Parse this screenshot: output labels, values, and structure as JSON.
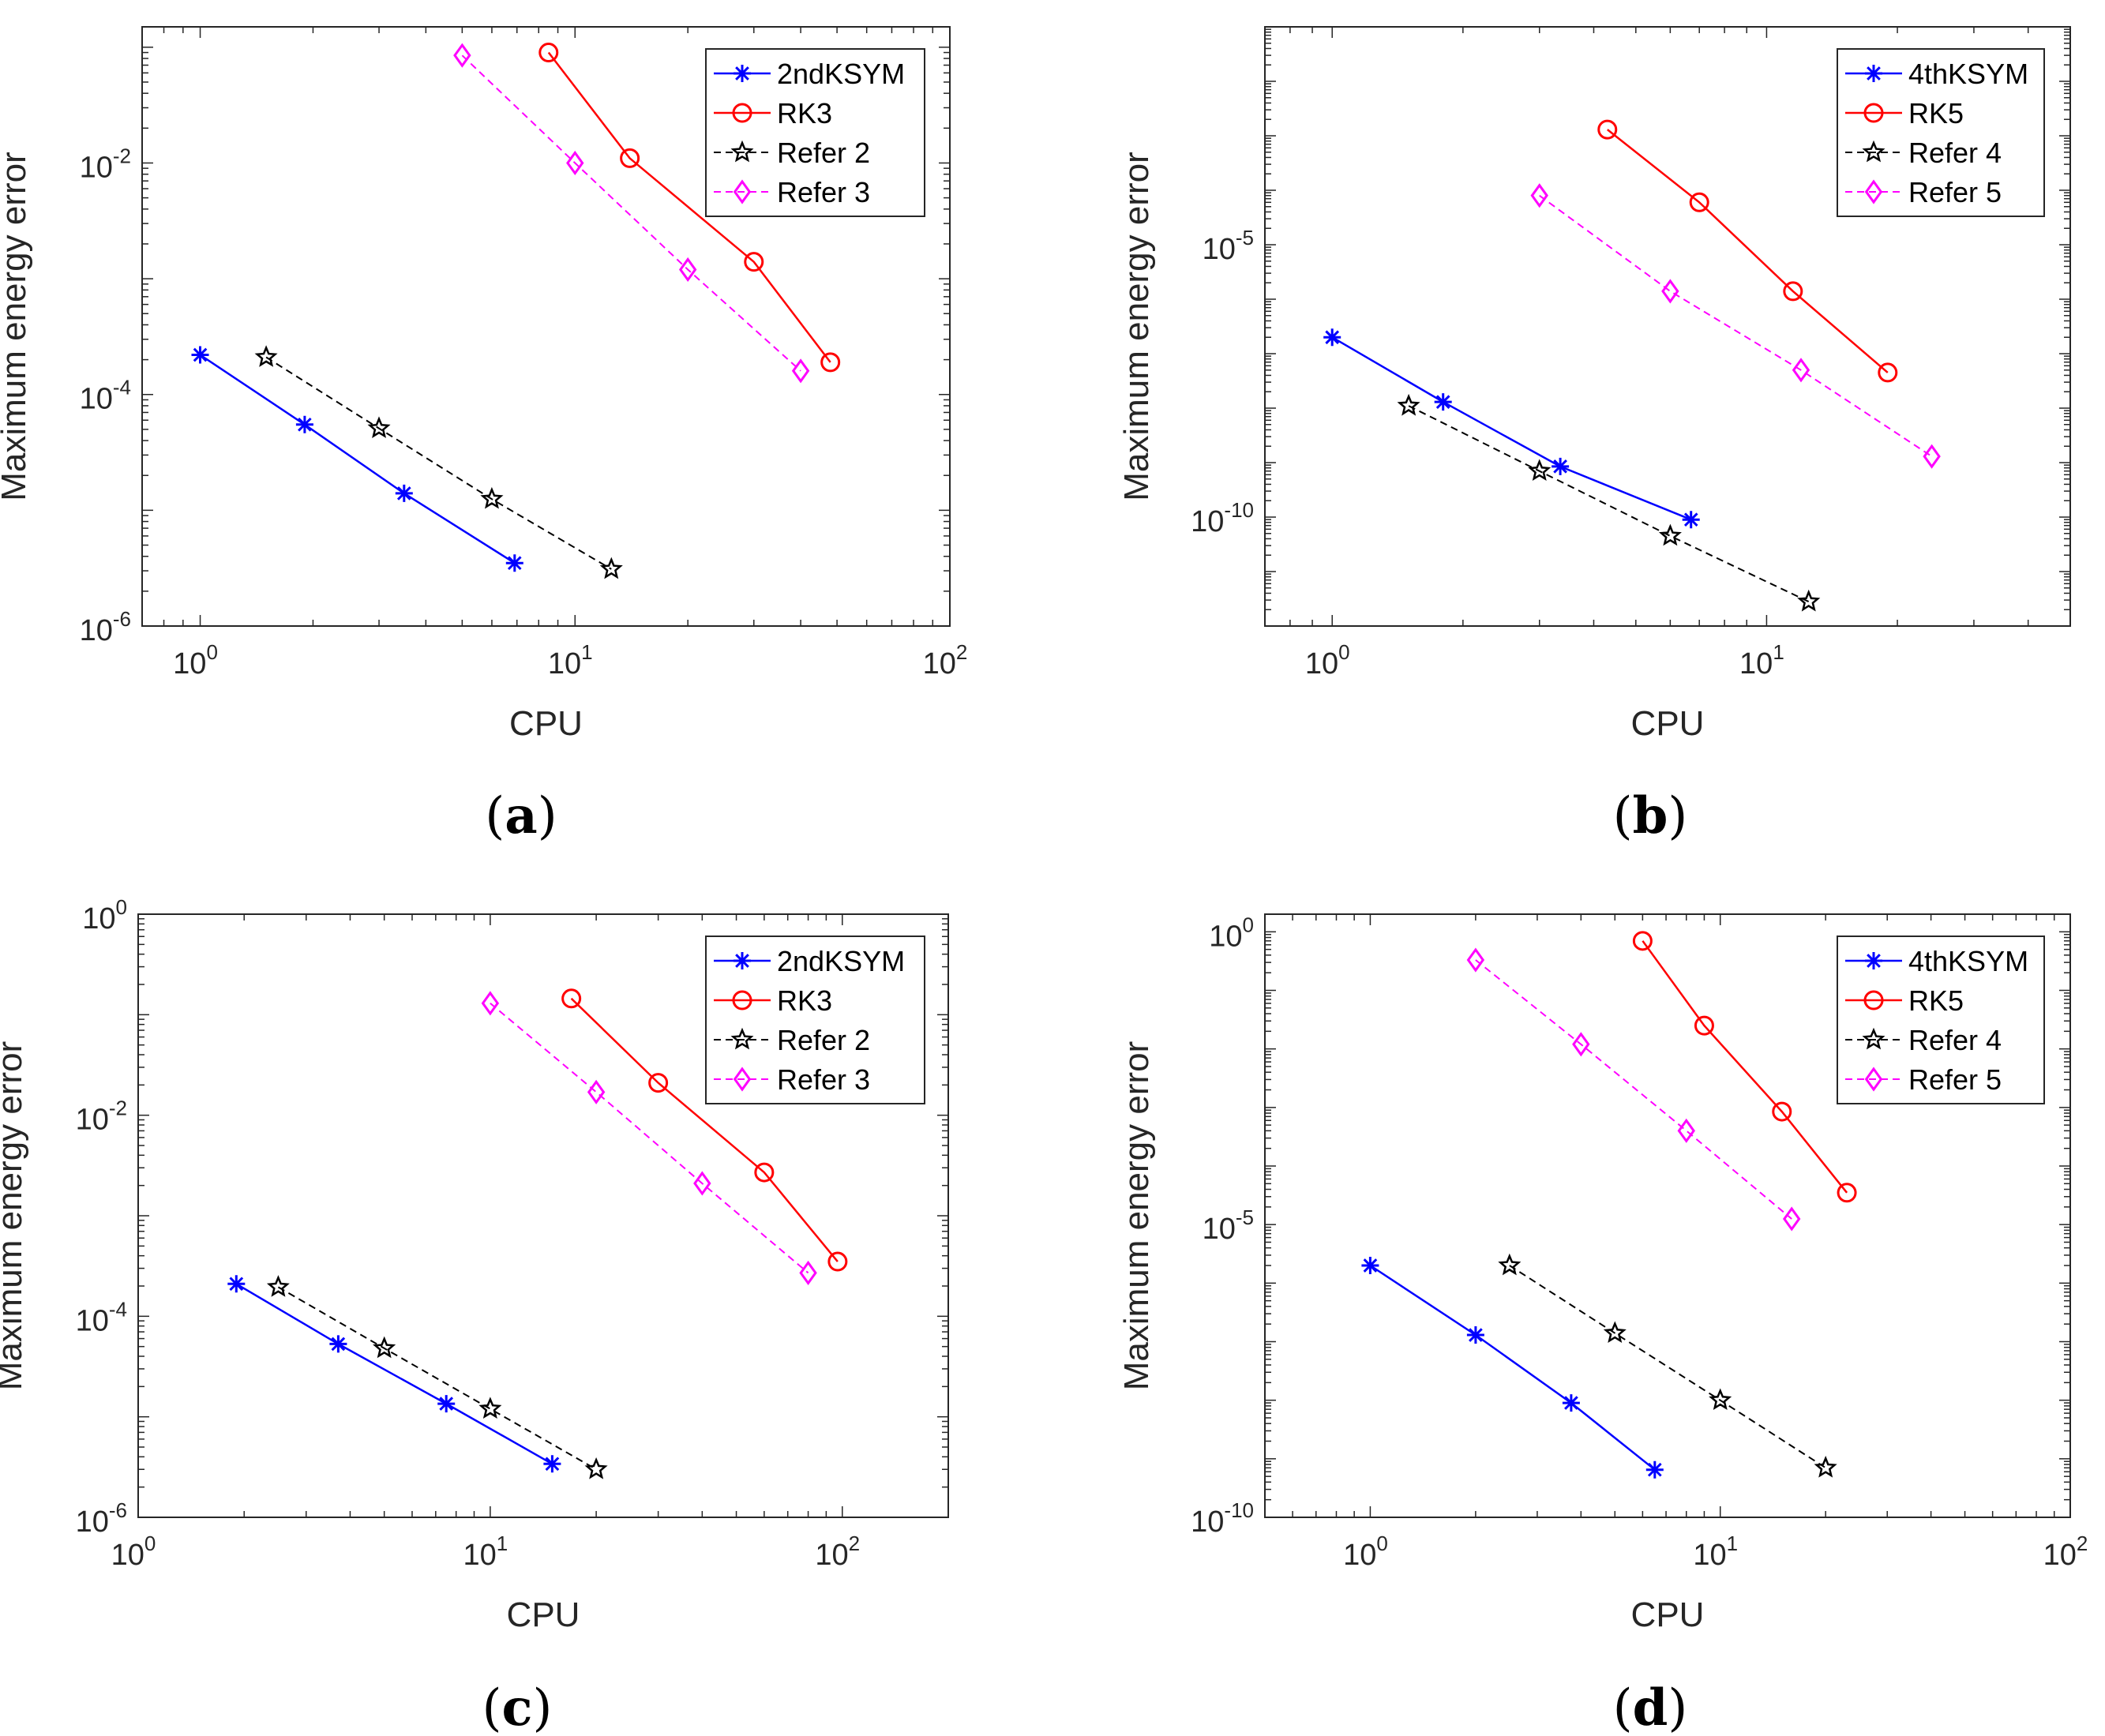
{
  "colors": {
    "blue": "#0000ff",
    "red": "#ff0000",
    "black": "#000000",
    "magenta": "#ff00ff",
    "axis": "#262626"
  },
  "chart_data": [
    {
      "type": "line",
      "panel_label": "a",
      "caption": {
        "open": "(",
        "letter": "a",
        "close": ")"
      },
      "xlabel": "CPU",
      "ylabel": "Maximum energy error",
      "xscale": "log",
      "yscale": "log",
      "xlim": [
        0.7,
        100
      ],
      "ylim": [
        1e-06,
        0.15
      ],
      "xticks": [
        {
          "value": 1,
          "base": "10",
          "exp": "0"
        },
        {
          "value": 10,
          "base": "10",
          "exp": "1"
        },
        {
          "value": 100,
          "base": "10",
          "exp": "2"
        }
      ],
      "yticks": [
        {
          "value": 1e-06,
          "base": "10",
          "exp": "-6"
        },
        {
          "value": 0.0001,
          "base": "10",
          "exp": "-4"
        },
        {
          "value": 0.01,
          "base": "10",
          "exp": "-2"
        }
      ],
      "legend_position": "top-right",
      "series": [
        {
          "name": "2ndKSYM",
          "color": "blue",
          "marker": "asterisk",
          "dash": "solid",
          "x": [
            1.0,
            1.9,
            3.5,
            6.9
          ],
          "y": [
            0.00022,
            5.5e-05,
            1.4e-05,
            3.5e-06
          ]
        },
        {
          "name": "RK3",
          "color": "red",
          "marker": "circle",
          "dash": "solid",
          "x": [
            8.5,
            14,
            30,
            48
          ],
          "y": [
            0.09,
            0.011,
            0.0014,
            0.00019
          ]
        },
        {
          "name": "Refer 2",
          "color": "black",
          "marker": "star",
          "dash": "dashed",
          "x": [
            1.5,
            3.0,
            6.0,
            12.5
          ],
          "y": [
            0.00021,
            5.1e-05,
            1.25e-05,
            3.1e-06
          ]
        },
        {
          "name": "Refer 3",
          "color": "magenta",
          "marker": "diamond",
          "dash": "dashed",
          "x": [
            5.0,
            10.0,
            20.0,
            40.0
          ],
          "y": [
            0.085,
            0.01,
            0.0012,
            0.00016
          ]
        }
      ]
    },
    {
      "type": "line",
      "panel_label": "b",
      "caption": {
        "open": "(",
        "letter": "b",
        "close": ")"
      },
      "xlabel": "CPU",
      "ylabel": "Maximum energy error",
      "xscale": "log",
      "yscale": "log",
      "xlim": [
        0.7,
        50
      ],
      "ylim": [
        1e-12,
        0.1
      ],
      "xticks": [
        {
          "value": 1,
          "base": "10",
          "exp": "0"
        },
        {
          "value": 10,
          "base": "10",
          "exp": "1"
        }
      ],
      "yticks": [
        {
          "value": 1e-10,
          "base": "10",
          "exp": "-10"
        },
        {
          "value": 1e-05,
          "base": "10",
          "exp": "-5"
        }
      ],
      "legend_position": "top-right",
      "series": [
        {
          "name": "4thKSYM",
          "color": "blue",
          "marker": "asterisk",
          "dash": "solid",
          "x": [
            1.0,
            1.8,
            3.35,
            6.7
          ],
          "y": [
            2e-07,
            1.3e-08,
            8.5e-10,
            9e-11
          ]
        },
        {
          "name": "RK5",
          "color": "red",
          "marker": "circle",
          "dash": "solid",
          "x": [
            4.3,
            7.0,
            11.5,
            19
          ],
          "y": [
            0.0013,
            6e-05,
            1.4e-06,
            4.5e-08
          ]
        },
        {
          "name": "Refer 4",
          "color": "black",
          "marker": "star",
          "dash": "dashed",
          "x": [
            1.5,
            3.0,
            6.0,
            12.5
          ],
          "y": [
            1.1e-08,
            7e-10,
            4.5e-11,
            2.8e-12
          ]
        },
        {
          "name": "Refer 5",
          "color": "magenta",
          "marker": "diamond",
          "dash": "dashed",
          "x": [
            3.0,
            6.0,
            12.0,
            24.0
          ],
          "y": [
            8e-05,
            1.4e-06,
            5e-08,
            1.3e-09
          ]
        }
      ]
    },
    {
      "type": "line",
      "panel_label": "c",
      "caption": {
        "open": "(",
        "letter": "c",
        "close": ")"
      },
      "xlabel": "CPU",
      "ylabel": "Maximum energy error",
      "xscale": "log",
      "yscale": "log",
      "xlim": [
        1,
        200
      ],
      "ylim": [
        1e-06,
        1
      ],
      "xticks": [
        {
          "value": 1,
          "base": "10",
          "exp": "0"
        },
        {
          "value": 10,
          "base": "10",
          "exp": "1"
        },
        {
          "value": 100,
          "base": "10",
          "exp": "2"
        }
      ],
      "yticks": [
        {
          "value": 1e-06,
          "base": "10",
          "exp": "-6"
        },
        {
          "value": 0.0001,
          "base": "10",
          "exp": "-4"
        },
        {
          "value": 0.01,
          "base": "10",
          "exp": "-2"
        },
        {
          "value": 1,
          "base": "10",
          "exp": "0"
        }
      ],
      "legend_position": "top-right",
      "series": [
        {
          "name": "2ndKSYM",
          "color": "blue",
          "marker": "asterisk",
          "dash": "solid",
          "x": [
            1.9,
            3.7,
            7.5,
            15
          ],
          "y": [
            0.00021,
            5.3e-05,
            1.35e-05,
            3.4e-06
          ]
        },
        {
          "name": "RK3",
          "color": "red",
          "marker": "circle",
          "dash": "solid",
          "x": [
            17,
            30,
            60,
            97
          ],
          "y": [
            0.145,
            0.021,
            0.0027,
            0.00035
          ]
        },
        {
          "name": "Refer 2",
          "color": "black",
          "marker": "star",
          "dash": "dashed",
          "x": [
            2.5,
            5.0,
            10.0,
            20.0
          ],
          "y": [
            0.000195,
            4.8e-05,
            1.2e-05,
            3e-06
          ]
        },
        {
          "name": "Refer 3",
          "color": "magenta",
          "marker": "diamond",
          "dash": "dashed",
          "x": [
            10.0,
            20.0,
            40.0,
            80.0
          ],
          "y": [
            0.13,
            0.017,
            0.0021,
            0.00027
          ]
        }
      ]
    },
    {
      "type": "line",
      "panel_label": "d",
      "caption": {
        "open": "(",
        "letter": "d",
        "close": ")"
      },
      "xlabel": "CPU",
      "ylabel": "Maximum energy error",
      "xscale": "log",
      "yscale": "log",
      "xlim": [
        0.5,
        100
      ],
      "ylim": [
        1e-10,
        2
      ],
      "xticks": [
        {
          "value": 1,
          "base": "10",
          "exp": "0"
        },
        {
          "value": 10,
          "base": "10",
          "exp": "1"
        },
        {
          "value": 100,
          "base": "10",
          "exp": "2"
        }
      ],
      "yticks": [
        {
          "value": 1e-10,
          "base": "10",
          "exp": "-10"
        },
        {
          "value": 1e-05,
          "base": "10",
          "exp": "-5"
        },
        {
          "value": 1,
          "base": "10",
          "exp": "0"
        }
      ],
      "legend_position": "top-right",
      "series": [
        {
          "name": "4thKSYM",
          "color": "blue",
          "marker": "asterisk",
          "dash": "solid",
          "x": [
            1.0,
            2.0,
            3.75,
            6.5
          ],
          "y": [
            2e-06,
            1.3e-07,
            9e-09,
            6.5e-10
          ]
        },
        {
          "name": "RK5",
          "color": "red",
          "marker": "circle",
          "dash": "solid",
          "x": [
            6.0,
            9.0,
            15.0,
            23.0
          ],
          "y": [
            0.7,
            0.025,
            0.00085,
            3.5e-05
          ]
        },
        {
          "name": "Refer 4",
          "color": "black",
          "marker": "star",
          "dash": "dashed",
          "x": [
            2.5,
            5.0,
            10.0,
            20.0
          ],
          "y": [
            2e-06,
            1.4e-07,
            1e-08,
            7e-10
          ]
        },
        {
          "name": "Refer 5",
          "color": "magenta",
          "marker": "diamond",
          "dash": "dashed",
          "x": [
            2.0,
            4.0,
            8.0,
            16.0
          ],
          "y": [
            0.33,
            0.012,
            0.0004,
            1.25e-05
          ]
        }
      ]
    }
  ]
}
